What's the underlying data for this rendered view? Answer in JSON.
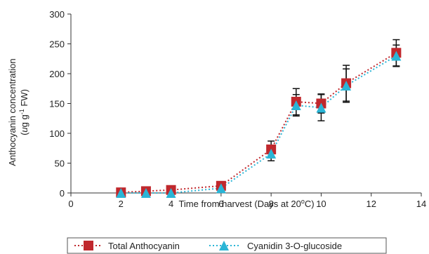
{
  "chart_data": {
    "type": "line",
    "xlabel": {
      "prefix": "Time from harvest (Days at 20",
      "superscript": "o",
      "suffix": "C)"
    },
    "ylabel": {
      "line1": "Anthocyanin concentration",
      "line2_pre": "(",
      "line2_italic": "u",
      "line2_mid": "g g",
      "line2_sup": "-1",
      "line2_post": " FW)"
    },
    "xlim": [
      0,
      14
    ],
    "ylim": [
      0,
      300
    ],
    "xticks": [
      0,
      2,
      4,
      6,
      8,
      10,
      12,
      14
    ],
    "yticks": [
      0,
      50,
      100,
      150,
      200,
      250,
      300
    ],
    "grid": false,
    "legend_position": "bottom",
    "series": [
      {
        "name": "Total Anthocyanin",
        "color": "#c0282d",
        "marker": "square",
        "line_style": "dotted",
        "x": [
          2,
          3,
          4,
          6,
          8,
          9,
          10,
          11,
          13
        ],
        "y": [
          1,
          3,
          5,
          12,
          73,
          153,
          150,
          184,
          235
        ],
        "error": [
          1,
          1,
          1,
          2,
          14,
          22,
          16,
          30,
          22
        ]
      },
      {
        "name": "Cyanidin 3-O-glucoside",
        "color": "#2ab5d6",
        "marker": "triangle",
        "line_style": "dotted",
        "x": [
          2,
          3,
          4,
          6,
          8,
          9,
          10,
          11,
          13
        ],
        "y": [
          0,
          0,
          0,
          8,
          66,
          147,
          143,
          180,
          230
        ],
        "error": [
          0,
          0,
          0,
          2,
          12,
          18,
          22,
          28,
          18
        ]
      }
    ]
  }
}
